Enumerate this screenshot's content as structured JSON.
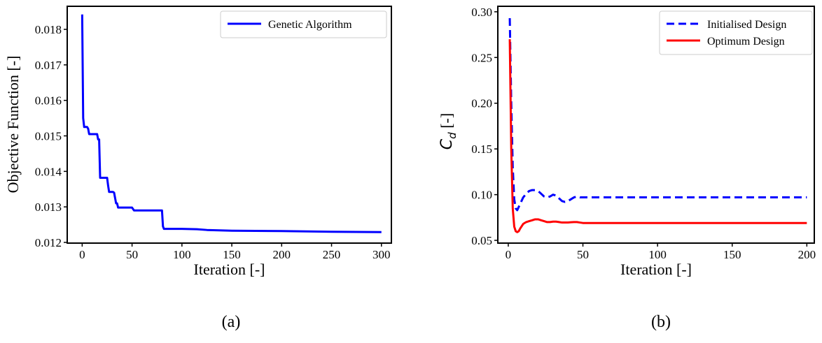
{
  "chart_data": [
    {
      "type": "line",
      "xlabel": "Iteration [-]",
      "ylabel": "Objective Function [-]",
      "xlim": [
        -15,
        310
      ],
      "ylim": [
        0.01198,
        0.01865
      ],
      "xticks": [
        0,
        50,
        100,
        150,
        200,
        250,
        300
      ],
      "yticks": [
        0.012,
        0.013,
        0.014,
        0.015,
        0.016,
        0.017,
        0.018
      ],
      "ytick_labels": [
        "0.012",
        "0.013",
        "0.014",
        "0.015",
        "0.016",
        "0.017",
        "0.018"
      ],
      "legend_position": "top-right",
      "caption": "(a)",
      "series": [
        {
          "name": "Genetic Algorithm",
          "color": "#0000ff",
          "style": "solid",
          "x": [
            0,
            1,
            2,
            3,
            5,
            6,
            7,
            8,
            15,
            16,
            17,
            18,
            19,
            25,
            26,
            27,
            30,
            31,
            32,
            33,
            34,
            35,
            36,
            40,
            50,
            51,
            52,
            53,
            80,
            81,
            82,
            100,
            115,
            125,
            150,
            200,
            250,
            300
          ],
          "y": [
            0.01842,
            0.0155,
            0.01525,
            0.01525,
            0.01525,
            0.0152,
            0.01505,
            0.01505,
            0.01505,
            0.0149,
            0.0149,
            0.01382,
            0.01382,
            0.01382,
            0.0136,
            0.01342,
            0.01342,
            0.01342,
            0.0134,
            0.01325,
            0.0131,
            0.0131,
            0.01298,
            0.01298,
            0.01298,
            0.01294,
            0.0129,
            0.0129,
            0.0129,
            0.01245,
            0.01238,
            0.01238,
            0.01237,
            0.01235,
            0.01233,
            0.01232,
            0.0123,
            0.01229
          ]
        }
      ]
    },
    {
      "type": "line",
      "xlabel": "Iteration [-]",
      "ylabel": "C_d [-]",
      "ylabel_main": "C",
      "ylabel_sub": "d",
      "ylabel_unit": " [-]",
      "xlim": [
        -7,
        205
      ],
      "ylim": [
        0.047,
        0.306
      ],
      "xticks": [
        0,
        50,
        100,
        150,
        200
      ],
      "yticks": [
        0.05,
        0.1,
        0.15,
        0.2,
        0.25,
        0.3
      ],
      "ytick_labels": [
        "0.05",
        "0.10",
        "0.15",
        "0.20",
        "0.25",
        "0.30"
      ],
      "legend_position": "top-right",
      "caption": "(b)",
      "series": [
        {
          "name": "Initialised Design",
          "color": "#0000ff",
          "style": "dashed",
          "x": [
            1,
            2,
            3,
            4,
            5,
            6,
            8,
            10,
            12,
            14,
            16,
            18,
            20,
            22,
            24,
            26,
            28,
            30,
            32,
            34,
            36,
            38,
            40,
            42,
            44,
            46,
            48,
            50,
            100,
            150,
            200
          ],
          "y": [
            0.293,
            0.2,
            0.13,
            0.095,
            0.085,
            0.083,
            0.09,
            0.097,
            0.101,
            0.104,
            0.105,
            0.105,
            0.104,
            0.101,
            0.098,
            0.097,
            0.098,
            0.1,
            0.099,
            0.096,
            0.093,
            0.092,
            0.093,
            0.095,
            0.097,
            0.098,
            0.097,
            0.097,
            0.097,
            0.097,
            0.097
          ]
        },
        {
          "name": "Optimum Design",
          "color": "#ff0000",
          "style": "solid",
          "x": [
            1,
            2,
            3,
            4,
            5,
            6,
            7,
            8,
            10,
            12,
            14,
            16,
            18,
            20,
            22,
            24,
            26,
            28,
            30,
            32,
            34,
            36,
            38,
            40,
            42,
            44,
            46,
            48,
            50,
            100,
            150,
            200
          ],
          "y": [
            0.27,
            0.15,
            0.085,
            0.065,
            0.06,
            0.059,
            0.06,
            0.063,
            0.068,
            0.07,
            0.071,
            0.072,
            0.073,
            0.073,
            0.072,
            0.071,
            0.07,
            0.07,
            0.0705,
            0.0705,
            0.07,
            0.0695,
            0.0695,
            0.0695,
            0.0698,
            0.07,
            0.07,
            0.0695,
            0.069,
            0.069,
            0.069,
            0.069
          ]
        }
      ]
    }
  ]
}
